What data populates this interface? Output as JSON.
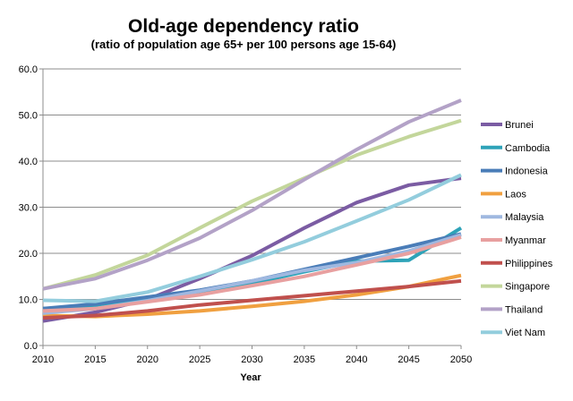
{
  "chart_data": {
    "type": "line",
    "title": "Old-age dependency ratio",
    "subtitle": "(ratio of population age 65+ per 100 persons age 15-64)",
    "xlabel": "Year",
    "ylabel": "",
    "x": [
      2010,
      2015,
      2020,
      2025,
      2030,
      2035,
      2040,
      2045,
      2050
    ],
    "ylim": [
      0,
      60
    ],
    "yticks": [
      0,
      10,
      20,
      30,
      40,
      50,
      60
    ],
    "ytick_labels": [
      "0.0",
      "10.0",
      "20.0",
      "30.0",
      "40.0",
      "50.0",
      "60.0"
    ],
    "grid": "horizontal",
    "legend_position": "right",
    "series": [
      {
        "name": "Brunei",
        "color": "#7b5ca3",
        "values": [
          5.3,
          7.2,
          10.0,
          14.5,
          19.5,
          25.5,
          31.0,
          34.8,
          36.3
        ]
      },
      {
        "name": "Cambodia",
        "color": "#2ea3b8",
        "values": [
          8.0,
          8.5,
          10.0,
          11.5,
          13.5,
          16.0,
          18.3,
          18.5,
          25.5
        ]
      },
      {
        "name": "Indonesia",
        "color": "#4a7db8",
        "values": [
          8.0,
          9.0,
          10.5,
          12.0,
          14.0,
          16.5,
          19.0,
          21.5,
          24.2
        ]
      },
      {
        "name": "Laos",
        "color": "#f0a040",
        "values": [
          6.5,
          6.3,
          6.8,
          7.5,
          8.5,
          9.6,
          11.0,
          12.8,
          15.2
        ]
      },
      {
        "name": "Malaysia",
        "color": "#9fb8e0",
        "values": [
          7.0,
          8.0,
          9.7,
          11.8,
          14.0,
          16.3,
          18.0,
          20.5,
          24.0
        ]
      },
      {
        "name": "Myanmar",
        "color": "#e8a0a0",
        "values": [
          7.5,
          8.0,
          9.5,
          11.0,
          13.0,
          15.0,
          17.5,
          20.0,
          23.5
        ]
      },
      {
        "name": "Philippines",
        "color": "#c0504d",
        "values": [
          6.0,
          6.5,
          7.5,
          8.8,
          9.8,
          10.8,
          11.8,
          12.8,
          14.0
        ]
      },
      {
        "name": "Singapore",
        "color": "#c3d69b",
        "values": [
          12.3,
          15.3,
          19.6,
          25.5,
          31.3,
          36.3,
          41.3,
          45.3,
          48.8
        ]
      },
      {
        "name": "Thailand",
        "color": "#b3a2c7",
        "values": [
          12.3,
          14.5,
          18.5,
          23.3,
          29.3,
          36.0,
          42.5,
          48.5,
          53.2
        ]
      },
      {
        "name": "Viet Nam",
        "color": "#93cddd",
        "values": [
          9.8,
          9.6,
          11.6,
          15.0,
          18.6,
          22.5,
          27.0,
          31.6,
          37.0
        ]
      }
    ]
  }
}
